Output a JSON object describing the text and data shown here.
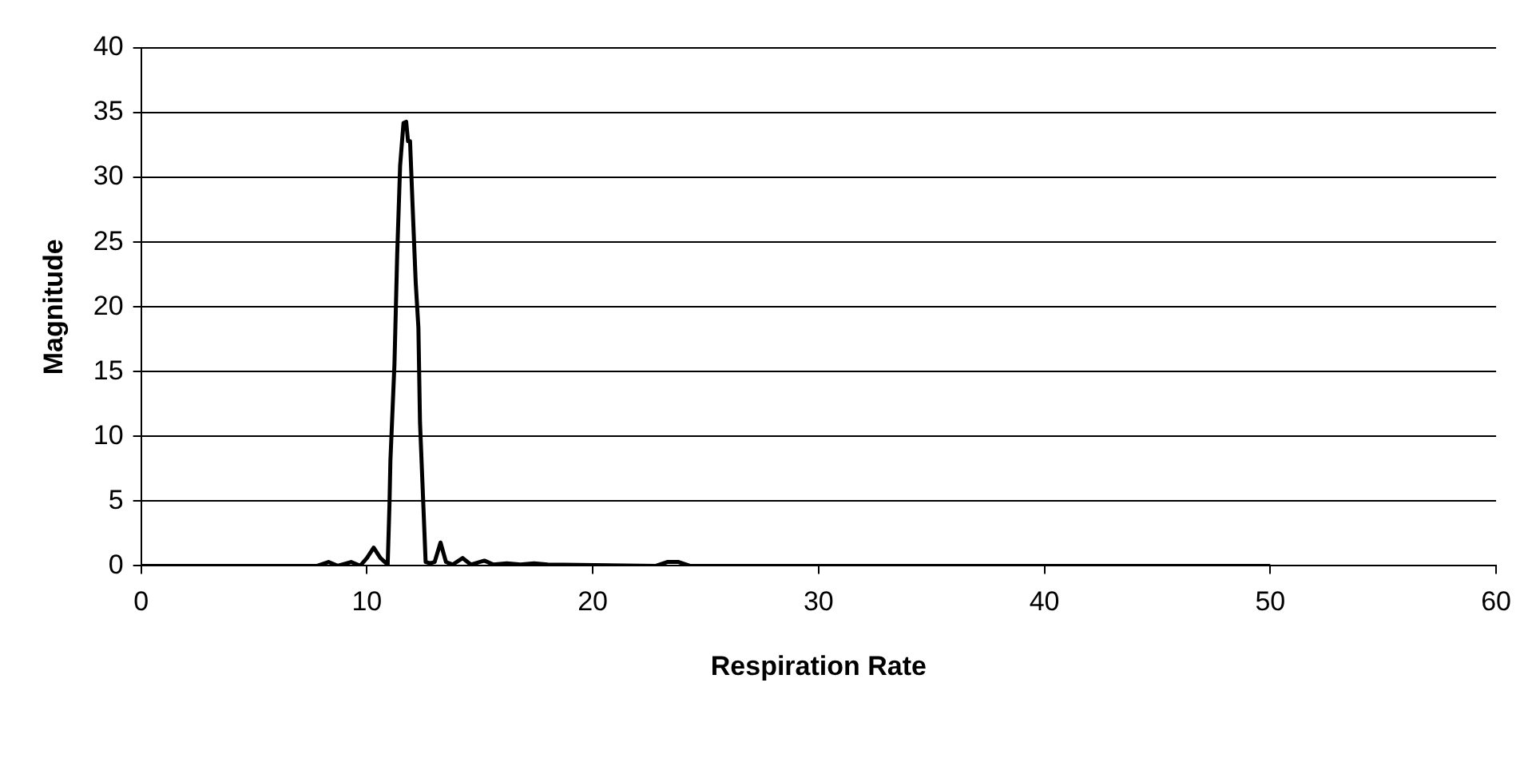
{
  "chart_data": {
    "type": "line",
    "xlabel": "Respiration Rate",
    "ylabel": "Magnitude",
    "xlim": [
      0,
      60
    ],
    "xticks": [
      0,
      10,
      20,
      30,
      40,
      50,
      60
    ],
    "ylim": [
      0,
      40
    ],
    "yticks": [
      0,
      5,
      10,
      15,
      20,
      25,
      30,
      35,
      40
    ],
    "grid": "y",
    "legend": false,
    "marker": "none",
    "line_style": "solid",
    "series": [
      {
        "color": "#000000",
        "x": [
          0,
          7.8,
          8.3,
          8.7,
          9.3,
          9.7,
          10.0,
          10.3,
          10.6,
          10.92,
          11.0,
          11.04,
          11.22,
          11.34,
          11.47,
          11.62,
          11.74,
          11.82,
          11.91,
          12.03,
          12.16,
          12.28,
          12.35,
          12.45,
          12.6,
          12.8,
          13.0,
          13.26,
          13.5,
          13.8,
          14.24,
          14.6,
          15.2,
          15.6,
          16.2,
          16.8,
          17.4,
          18.0,
          22.8,
          23.3,
          23.8,
          24.3,
          50
        ],
        "values": [
          0,
          0,
          0.3,
          0,
          0.3,
          0,
          0.6,
          1.4,
          0.6,
          0.1,
          4.8,
          8.1,
          15.6,
          24.0,
          30.9,
          34.2,
          34.3,
          32.8,
          32.8,
          27.5,
          21.9,
          18.4,
          11.1,
          6.8,
          0.3,
          0.2,
          0.3,
          1.8,
          0.3,
          0.1,
          0.6,
          0.1,
          0.4,
          0.1,
          0.2,
          0.1,
          0.2,
          0.1,
          0,
          0.3,
          0.3,
          0,
          0
        ]
      }
    ]
  }
}
